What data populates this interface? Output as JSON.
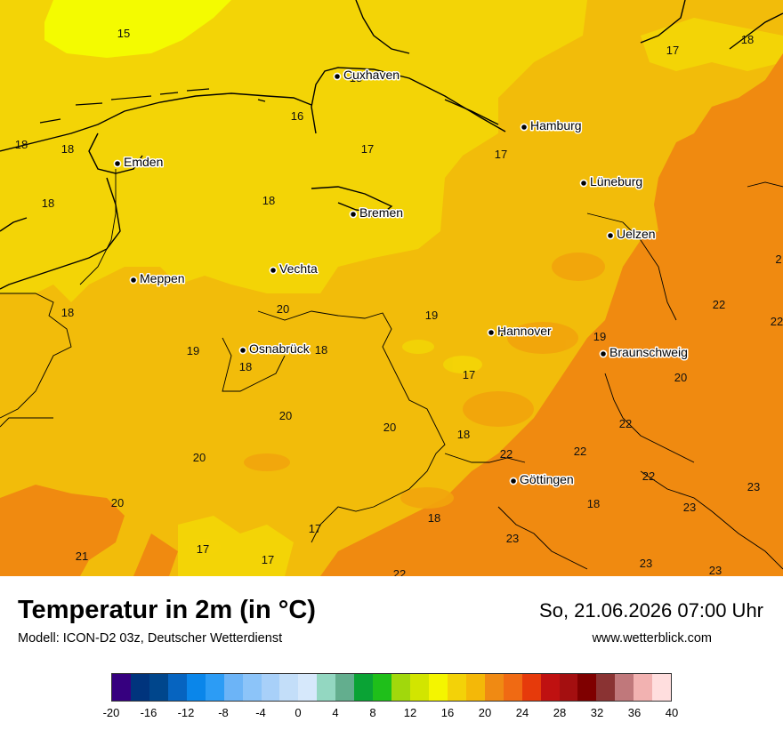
{
  "map": {
    "colors": {
      "t15": "#f4fb00",
      "t17": "#f3d406",
      "t19": "#f2bc0a",
      "t21": "#f08a10",
      "coast": "#000000"
    },
    "cities": [
      {
        "name": "Cuxhaven"
      },
      {
        "name": "Hamburg"
      },
      {
        "name": "Emden"
      },
      {
        "name": "Lüneburg"
      },
      {
        "name": "Bremen"
      },
      {
        "name": "Uelzen"
      },
      {
        "name": "Vechta"
      },
      {
        "name": "Meppen"
      },
      {
        "name": "Hannover"
      },
      {
        "name": "Osnabrück"
      },
      {
        "name": "Braunschweig"
      },
      {
        "name": "Göttingen"
      }
    ],
    "values": [
      "15",
      "18",
      "17",
      "16",
      "17",
      "18",
      "18",
      "17",
      "17",
      "18",
      "18",
      "18",
      "2",
      "20",
      "19",
      "22",
      "18",
      "22",
      "19",
      "20",
      "19",
      "18",
      "18",
      "17",
      "20",
      "20",
      "18",
      "22",
      "20",
      "22",
      "22",
      "23",
      "20",
      "18",
      "23",
      "17",
      "17",
      "23",
      "21",
      "22",
      "23",
      "23",
      "17"
    ]
  },
  "header": {
    "title": "Temperatur in 2m (in °C)",
    "model": "Modell: ICON-D2 03z, Deutscher Wetterdienst",
    "datetime": "So, 21.06.2026 07:00 Uhr",
    "website": "www.wetterblick.com"
  },
  "legend": {
    "colors": [
      "#36007f",
      "#00347d",
      "#00468c",
      "#0664c0",
      "#0a86ea",
      "#2c9cf5",
      "#6cb4f7",
      "#8cc4f9",
      "#a8d0f9",
      "#c3def9",
      "#d6e8fb",
      "#93d7c1",
      "#63ae8e",
      "#0aa335",
      "#1fbf1a",
      "#a1d80c",
      "#d2e500",
      "#f4f500",
      "#f3d208",
      "#f4b808",
      "#f08a13",
      "#f06a13",
      "#e63a0b",
      "#bf1111",
      "#a40f10",
      "#7f0000",
      "#8a3333",
      "#c0787b",
      "#f2b2b1",
      "#ffdede"
    ],
    "labels": [
      "-20",
      "-16",
      "-12",
      "-8",
      "-4",
      "0",
      "4",
      "8",
      "12",
      "16",
      "20",
      "24",
      "28",
      "32",
      "36",
      "40"
    ]
  }
}
